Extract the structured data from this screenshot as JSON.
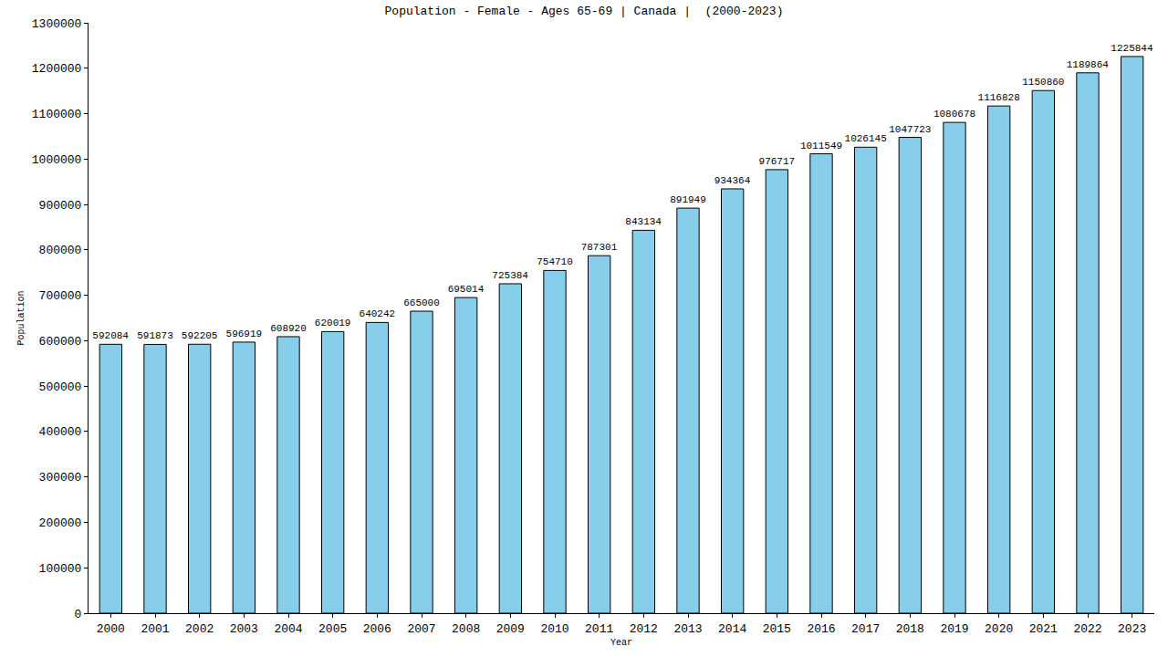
{
  "chart_data": {
    "type": "bar",
    "title": "Population - Female - Ages 65-69 | Canada |  (2000-2023)",
    "x_label": "Year",
    "y_label": "Population",
    "categories": [
      "2000",
      "2001",
      "2002",
      "2003",
      "2004",
      "2005",
      "2006",
      "2007",
      "2008",
      "2009",
      "2010",
      "2011",
      "2012",
      "2013",
      "2014",
      "2015",
      "2016",
      "2017",
      "2018",
      "2019",
      "2020",
      "2021",
      "2022",
      "2023"
    ],
    "values": [
      592084,
      591873,
      592205,
      596919,
      608920,
      620019,
      640242,
      665000,
      695014,
      725384,
      754710,
      787301,
      843134,
      891949,
      934364,
      976717,
      1011549,
      1026145,
      1047723,
      1080678,
      1116828,
      1150860,
      1189864,
      1225844
    ],
    "color": "#87ceeb",
    "ylim": [
      0,
      1300000
    ],
    "yticks": [
      0,
      100000,
      200000,
      300000,
      400000,
      500000,
      600000,
      700000,
      800000,
      900000,
      1000000,
      1100000,
      1200000,
      1300000
    ],
    "grid": false,
    "data_labels": true
  }
}
